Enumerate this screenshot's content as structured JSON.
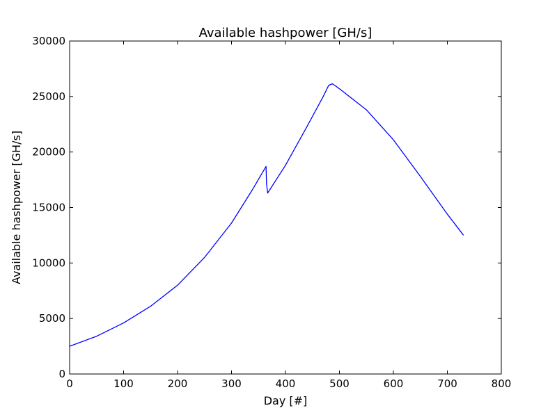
{
  "chart_data": {
    "type": "line",
    "title": "Available hashpower [GH/s]",
    "xlabel": "Day [#]",
    "ylabel": "Available hashpower [GH/s]",
    "xlim": [
      0,
      800
    ],
    "ylim": [
      0,
      30000
    ],
    "xticks": [
      0,
      100,
      200,
      300,
      400,
      500,
      600,
      700,
      800
    ],
    "yticks": [
      0,
      5000,
      10000,
      15000,
      20000,
      25000,
      30000
    ],
    "xtick_labels": [
      "0",
      "100",
      "200",
      "300",
      "400",
      "500",
      "600",
      "700",
      "800"
    ],
    "ytick_labels": [
      "0",
      "5000",
      "10000",
      "15000",
      "20000",
      "25000",
      "30000"
    ],
    "grid": false,
    "legend": "none",
    "series": [
      {
        "color": "#0000ff",
        "x": [
          0,
          50,
          100,
          150,
          200,
          250,
          300,
          340,
          364,
          365,
          367,
          400,
          440,
          470,
          480,
          487,
          500,
          550,
          600,
          650,
          700,
          730
        ],
        "y": [
          2500,
          3400,
          4600,
          6100,
          8000,
          10500,
          13600,
          16700,
          18700,
          17100,
          16300,
          18800,
          22300,
          25000,
          26000,
          26150,
          25700,
          23800,
          21100,
          17800,
          14400,
          12500
        ]
      }
    ]
  }
}
